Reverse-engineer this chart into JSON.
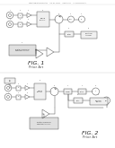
{
  "background_color": "#ffffff",
  "line_color": "#555555",
  "dark_line": "#333333",
  "fig1_label": "FIG. 1",
  "fig1_sub": "Prior Art",
  "fig2_label": "FIG. 2",
  "fig2_sub": "Prior Art",
  "header": "Patent Application Publication     App. No. XXXXX     Sheet 1 of 11     US XXXXXXXXXX A1",
  "box_fill": "#f0f0f0",
  "box_fill2": "#e0e0e0"
}
